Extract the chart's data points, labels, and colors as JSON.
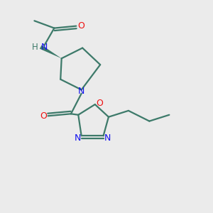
{
  "bg_color": "#ebebeb",
  "bond_color": "#3d7a6a",
  "N_color": "#1010ee",
  "O_color": "#ee1010",
  "figsize": [
    3.0,
    3.0
  ],
  "dpi": 100,
  "xlim": [
    0,
    10
  ],
  "ylim": [
    0,
    10
  ]
}
